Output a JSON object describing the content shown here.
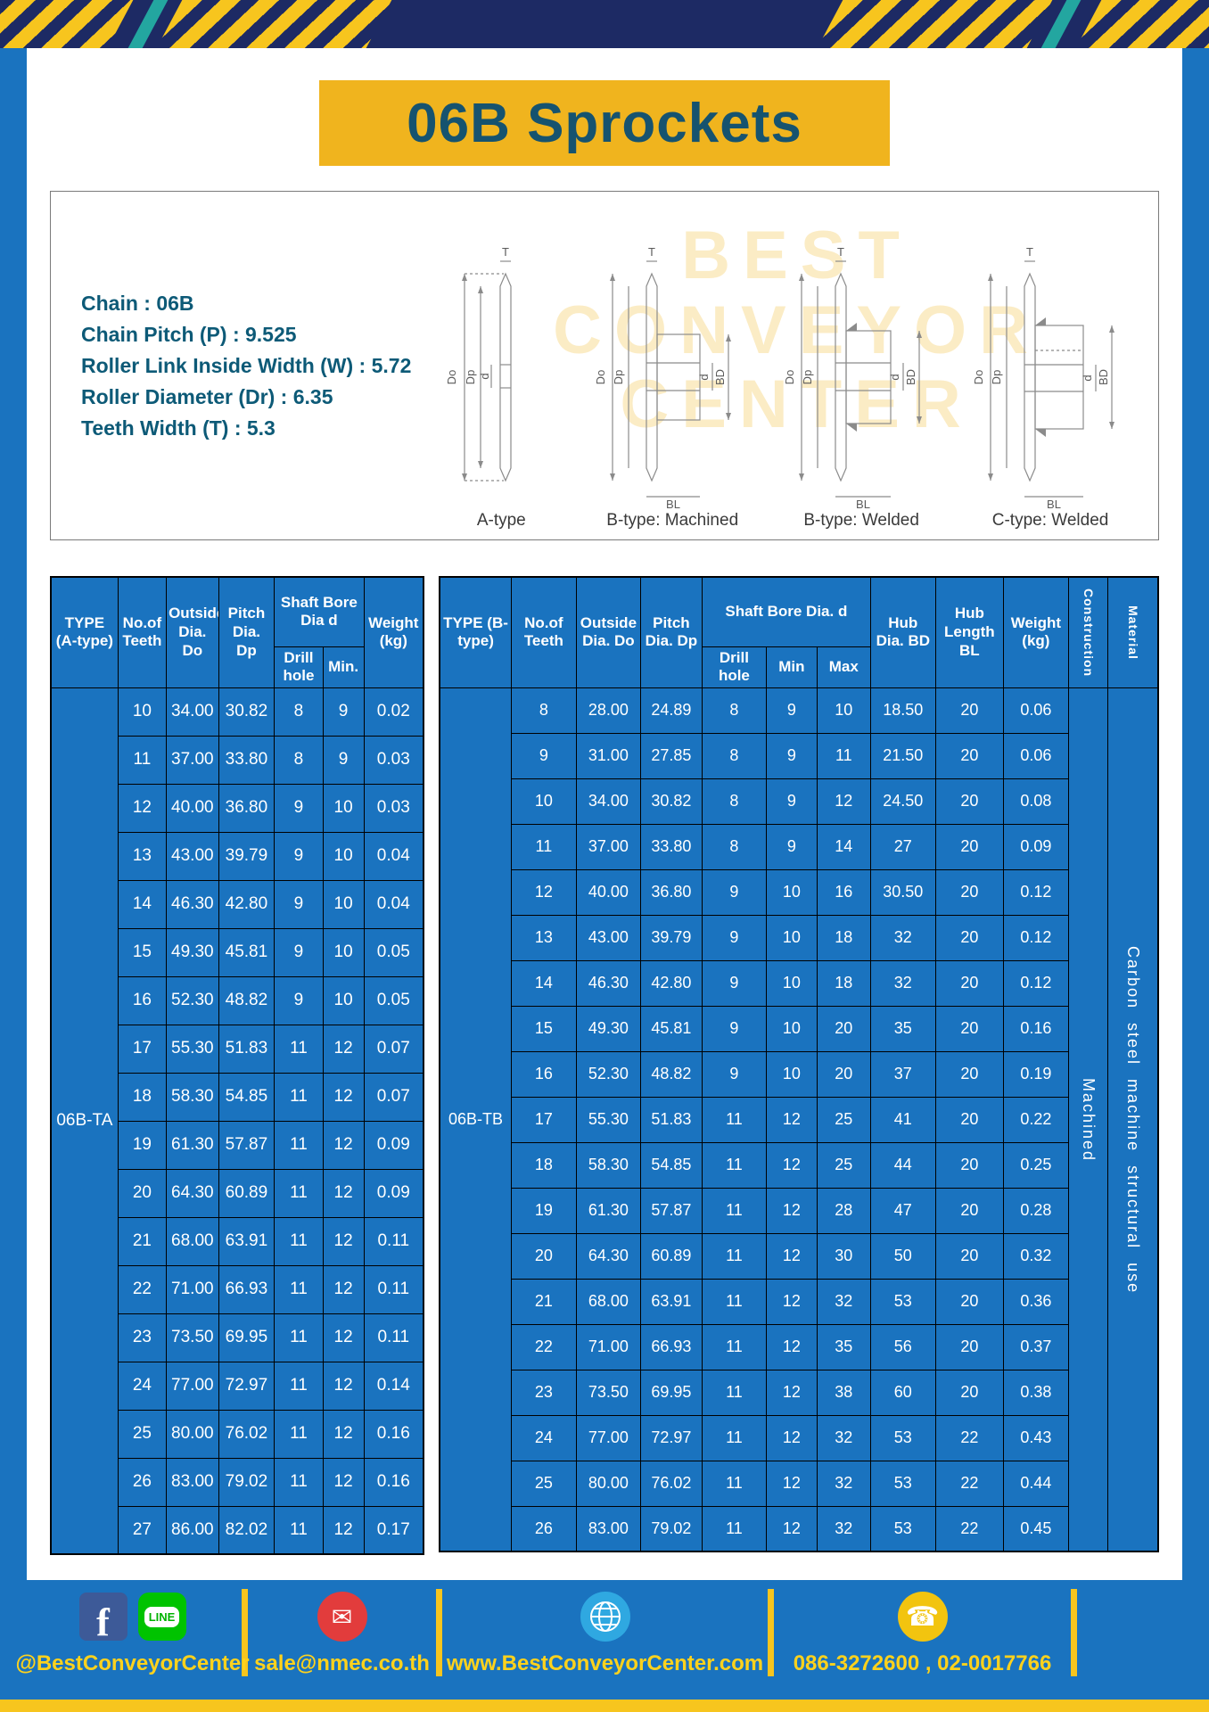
{
  "page": {
    "title": "06B Sprockets",
    "watermark_lines": [
      "BEST",
      "CONVEYOR",
      "CENTER"
    ]
  },
  "colors": {
    "frame_blue": "#1a73bf",
    "navy": "#1d2a64",
    "yellow": "#f7c51e",
    "banner_yellow": "#f0b41e",
    "teal_text": "#0d5a77"
  },
  "specs": {
    "lines": [
      "Chain : 06B",
      "Chain Pitch (P) : 9.525",
      "Roller Link Inside Width (W) : 5.72",
      "Roller Diameter (Dr) : 6.35",
      "Teeth Width (T) : 5.3"
    ]
  },
  "diagrams": {
    "captions": [
      "A-type",
      "B-type: Machined",
      "B-type: Welded",
      "C-type: Welded"
    ],
    "dims": {
      "t": "T",
      "outside": "Do",
      "pitch": "Dp",
      "bore": "d",
      "hub_dia": "BD",
      "hub_len": "BL"
    }
  },
  "tableA": {
    "headers": [
      "TYPE (A-type)",
      "No.of Teeth",
      "Outside Dia. Do",
      "Pitch Dia. Dp",
      "Shaft Bore Dia d",
      "Drill hole",
      "Min.",
      "Weight (kg)"
    ],
    "type_label": "06B-TA",
    "rows": [
      [
        "10",
        "34.00",
        "30.82",
        "8",
        "9",
        "0.02"
      ],
      [
        "11",
        "37.00",
        "33.80",
        "8",
        "9",
        "0.03"
      ],
      [
        "12",
        "40.00",
        "36.80",
        "9",
        "10",
        "0.03"
      ],
      [
        "13",
        "43.00",
        "39.79",
        "9",
        "10",
        "0.04"
      ],
      [
        "14",
        "46.30",
        "42.80",
        "9",
        "10",
        "0.04"
      ],
      [
        "15",
        "49.30",
        "45.81",
        "9",
        "10",
        "0.05"
      ],
      [
        "16",
        "52.30",
        "48.82",
        "9",
        "10",
        "0.05"
      ],
      [
        "17",
        "55.30",
        "51.83",
        "11",
        "12",
        "0.07"
      ],
      [
        "18",
        "58.30",
        "54.85",
        "11",
        "12",
        "0.07"
      ],
      [
        "19",
        "61.30",
        "57.87",
        "11",
        "12",
        "0.09"
      ],
      [
        "20",
        "64.30",
        "60.89",
        "11",
        "12",
        "0.09"
      ],
      [
        "21",
        "68.00",
        "63.91",
        "11",
        "12",
        "0.11"
      ],
      [
        "22",
        "71.00",
        "66.93",
        "11",
        "12",
        "0.11"
      ],
      [
        "23",
        "73.50",
        "69.95",
        "11",
        "12",
        "0.11"
      ],
      [
        "24",
        "77.00",
        "72.97",
        "11",
        "12",
        "0.14"
      ],
      [
        "25",
        "80.00",
        "76.02",
        "11",
        "12",
        "0.16"
      ],
      [
        "26",
        "83.00",
        "79.02",
        "11",
        "12",
        "0.16"
      ],
      [
        "27",
        "86.00",
        "82.02",
        "11",
        "12",
        "0.17"
      ]
    ]
  },
  "tableB": {
    "headers": [
      "TYPE (B-type)",
      "No.of Teeth",
      "Outside Dia. Do",
      "Pitch Dia. Dp",
      "Shaft Bore Dia. d",
      "Drill hole",
      "Min",
      "Max",
      "Hub Dia. BD",
      "Hub Length BL",
      "Weight (kg)",
      "Construction",
      "Material"
    ],
    "type_label": "06B-TB",
    "construction": "Machined",
    "material": "Carbon steel machine structural use",
    "rows": [
      [
        "8",
        "28.00",
        "24.89",
        "8",
        "9",
        "10",
        "18.50",
        "20",
        "0.06"
      ],
      [
        "9",
        "31.00",
        "27.85",
        "8",
        "9",
        "11",
        "21.50",
        "20",
        "0.06"
      ],
      [
        "10",
        "34.00",
        "30.82",
        "8",
        "9",
        "12",
        "24.50",
        "20",
        "0.08"
      ],
      [
        "11",
        "37.00",
        "33.80",
        "8",
        "9",
        "14",
        "27",
        "20",
        "0.09"
      ],
      [
        "12",
        "40.00",
        "36.80",
        "9",
        "10",
        "16",
        "30.50",
        "20",
        "0.12"
      ],
      [
        "13",
        "43.00",
        "39.79",
        "9",
        "10",
        "18",
        "32",
        "20",
        "0.12"
      ],
      [
        "14",
        "46.30",
        "42.80",
        "9",
        "10",
        "18",
        "32",
        "20",
        "0.12"
      ],
      [
        "15",
        "49.30",
        "45.81",
        "9",
        "10",
        "20",
        "35",
        "20",
        "0.16"
      ],
      [
        "16",
        "52.30",
        "48.82",
        "9",
        "10",
        "20",
        "37",
        "20",
        "0.19"
      ],
      [
        "17",
        "55.30",
        "51.83",
        "11",
        "12",
        "25",
        "41",
        "20",
        "0.22"
      ],
      [
        "18",
        "58.30",
        "54.85",
        "11",
        "12",
        "25",
        "44",
        "20",
        "0.25"
      ],
      [
        "19",
        "61.30",
        "57.87",
        "11",
        "12",
        "28",
        "47",
        "20",
        "0.28"
      ],
      [
        "20",
        "64.30",
        "60.89",
        "11",
        "12",
        "30",
        "50",
        "20",
        "0.32"
      ],
      [
        "21",
        "68.00",
        "63.91",
        "11",
        "12",
        "32",
        "53",
        "20",
        "0.36"
      ],
      [
        "22",
        "71.00",
        "66.93",
        "11",
        "12",
        "35",
        "56",
        "20",
        "0.37"
      ],
      [
        "23",
        "73.50",
        "69.95",
        "11",
        "12",
        "38",
        "60",
        "20",
        "0.38"
      ],
      [
        "24",
        "77.00",
        "72.97",
        "11",
        "12",
        "32",
        "53",
        "22",
        "0.43"
      ],
      [
        "25",
        "80.00",
        "76.02",
        "11",
        "12",
        "32",
        "53",
        "22",
        "0.44"
      ],
      [
        "26",
        "83.00",
        "79.02",
        "11",
        "12",
        "32",
        "53",
        "22",
        "0.45"
      ]
    ]
  },
  "icons": {
    "facebook_letter": "f",
    "line_text": "LINE",
    "mail_glyph": "✉",
    "phone_glyph": "☎"
  },
  "footer": {
    "contacts": [
      {
        "icons": [
          "facebook-icon",
          "line-icon"
        ],
        "label": "@BestConveyorCenter"
      },
      {
        "icons": [
          "mail-icon"
        ],
        "label": "sale@nmec.co.th"
      },
      {
        "icons": [
          "globe-icon"
        ],
        "label": "www.BestConveyorCenter.com"
      },
      {
        "icons": [
          "phone-icon"
        ],
        "label": "086-3272600 , 02-0017766"
      }
    ]
  }
}
